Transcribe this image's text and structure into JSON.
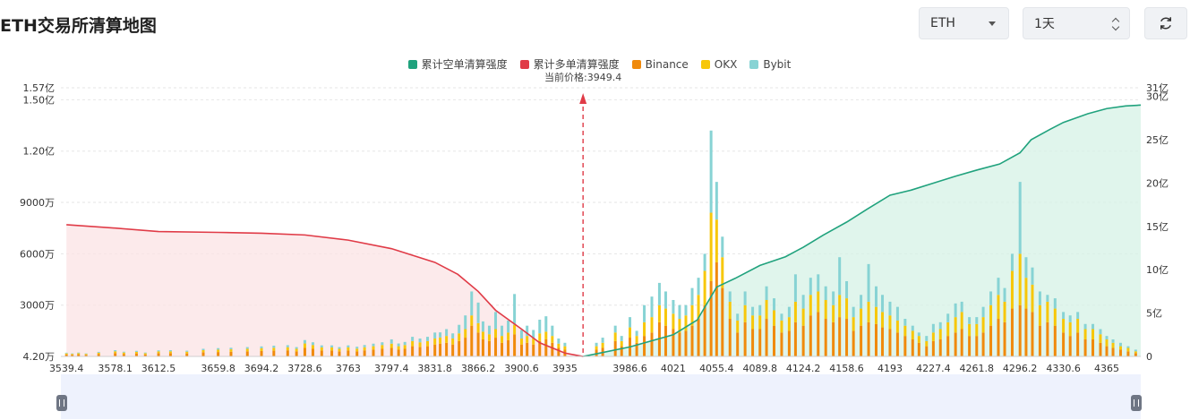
{
  "header": {
    "title": "ETH交易所清算地图",
    "coin_select": "ETH",
    "period_select": "1天"
  },
  "chart_data": {
    "type": "bar",
    "legend": [
      {
        "name": "累计空单清算强度",
        "color": "#20a27d"
      },
      {
        "name": "累计多单清算强度",
        "color": "#e03b47"
      },
      {
        "name": "Binance",
        "color": "#f08a0c"
      },
      {
        "name": "OKX",
        "color": "#f7c70a"
      },
      {
        "name": "Bybit",
        "color": "#87d3d4"
      }
    ],
    "current_price_label": "当前价格:3949.4",
    "current_price": 3949.4,
    "x_tick_labels": [
      "3539.4",
      "3578.1",
      "3612.5",
      "3659.8",
      "3694.2",
      "3728.6",
      "3763",
      "3797.4",
      "3831.8",
      "3866.2",
      "3900.6",
      "3935",
      "3986.6",
      "4021",
      "4055.4",
      "4089.8",
      "4124.2",
      "4158.6",
      "4193",
      "4227.4",
      "4261.8",
      "4296.2",
      "4330.6",
      "4365"
    ],
    "x_range": [
      3535,
      4392
    ],
    "left_axis_ticks": [
      {
        "label": "4.20万",
        "value": 42000
      },
      {
        "label": "3000万",
        "value": 30000000
      },
      {
        "label": "6000万",
        "value": 60000000
      },
      {
        "label": "9000万",
        "value": 90000000
      },
      {
        "label": "1.20亿",
        "value": 120000000
      },
      {
        "label": "1.50亿",
        "value": 150000000
      },
      {
        "label": "1.57亿",
        "value": 157000000
      }
    ],
    "right_axis_ticks": [
      {
        "label": "0",
        "value": 0
      },
      {
        "label": "5亿",
        "value": 500000000
      },
      {
        "label": "10亿",
        "value": 1000000000
      },
      {
        "label": "15亿",
        "value": 1500000000
      },
      {
        "label": "20亿",
        "value": 2000000000
      },
      {
        "label": "25亿",
        "value": 2500000000
      },
      {
        "label": "30亿",
        "value": 3000000000
      },
      {
        "label": "31亿",
        "value": 3100000000
      }
    ],
    "left_ylim": [
      42000,
      157000000
    ],
    "right_ylim": [
      0,
      3100000000
    ],
    "bars_long": {
      "x": [
        3539.4,
        3544,
        3549,
        3555,
        3565,
        3578.1,
        3585,
        3595,
        3602,
        3612.5,
        3622,
        3635,
        3648,
        3659.8,
        3670,
        3683,
        3694.2,
        3704,
        3715,
        3722,
        3728.6,
        3735,
        3742,
        3750,
        3756,
        3763,
        3770,
        3776,
        3783,
        3790,
        3797.4,
        3803,
        3808,
        3814,
        3820,
        3826,
        3831.8,
        3836,
        3841,
        3846,
        3851,
        3856,
        3861,
        3866.2,
        3870,
        3875,
        3880,
        3885,
        3890,
        3895,
        3900.6,
        3905,
        3910,
        3915,
        3920,
        3925,
        3930,
        3935
      ],
      "binance": [
        1.2,
        1.0,
        1.3,
        1.0,
        1.5,
        2.0,
        1.5,
        1.8,
        1.2,
        2.0,
        2.0,
        1.8,
        2.5,
        2.6,
        2.8,
        3.0,
        3.2,
        3.4,
        3.6,
        3.0,
        5.0,
        4.5,
        3.5,
        3.5,
        3.0,
        3.5,
        3.0,
        3.6,
        4.0,
        4.5,
        5.0,
        4.0,
        4.5,
        6.0,
        5.5,
        6.0,
        7.0,
        7.5,
        8.0,
        7.0,
        9.0,
        11.0,
        18.0,
        14.0,
        10.0,
        9.0,
        11.0,
        8.0,
        9.5,
        13.0,
        7.0,
        8.0,
        7.0,
        9.0,
        10.0,
        8.0,
        5.0,
        4.0
      ],
      "okx": [
        0.6,
        0.5,
        0.6,
        0.5,
        0.7,
        1.0,
        0.8,
        0.9,
        0.7,
        1.0,
        1.0,
        1.0,
        1.2,
        1.4,
        1.4,
        1.5,
        1.6,
        1.7,
        1.8,
        1.5,
        2.6,
        2.2,
        1.8,
        1.8,
        1.5,
        1.8,
        1.6,
        1.8,
        2.0,
        2.2,
        2.5,
        2.0,
        2.2,
        3.0,
        2.8,
        3.0,
        3.5,
        3.6,
        4.0,
        3.5,
        4.5,
        5.0,
        6.0,
        5.5,
        4.5,
        4.0,
        5.0,
        4.0,
        4.5,
        5.5,
        3.5,
        4.0,
        3.5,
        4.5,
        4.5,
        4.0,
        2.5,
        2.0
      ],
      "bybit": [
        0.4,
        0.3,
        0.4,
        0.3,
        0.5,
        0.7,
        0.5,
        0.6,
        0.4,
        0.6,
        0.7,
        0.6,
        0.8,
        0.9,
        0.9,
        1.0,
        1.1,
        1.2,
        1.2,
        1.0,
        2.0,
        1.6,
        1.2,
        1.2,
        1.0,
        1.2,
        1.1,
        1.3,
        1.5,
        1.6,
        2.5,
        1.6,
        1.8,
        2.5,
        2.2,
        2.5,
        3.5,
        3.0,
        4.0,
        3.0,
        5.0,
        8.0,
        14.0,
        12.0,
        6.0,
        5.0,
        10.0,
        6.0,
        7.0,
        18.0,
        5.0,
        6.0,
        5.0,
        8.0,
        9.0,
        6.0,
        3.0,
        2.0
      ]
    },
    "bars_short": {
      "x": [
        3960,
        3965,
        3975,
        3980,
        3986.6,
        3992,
        3998,
        4004,
        4010,
        4015,
        4021,
        4026,
        4031,
        4036,
        4041,
        4046,
        4051,
        4055.4,
        4060,
        4066,
        4072,
        4078,
        4084,
        4089.8,
        4095,
        4101,
        4107,
        4113,
        4118,
        4124.2,
        4130,
        4136,
        4142,
        4148,
        4153,
        4158.6,
        4164,
        4170,
        4176,
        4182,
        4187,
        4193,
        4199,
        4205,
        4211,
        4216,
        4222,
        4227.4,
        4233,
        4239,
        4245,
        4250,
        4256,
        4261.8,
        4267,
        4273,
        4279,
        4284,
        4290,
        4296.2,
        4301,
        4306,
        4312,
        4318,
        4324,
        4330.6,
        4336,
        4342,
        4348,
        4354,
        4360,
        4365,
        4370,
        4376,
        4382,
        4388
      ],
      "binance": [
        4,
        5,
        9,
        6,
        11,
        8,
        12,
        14,
        20,
        18,
        16,
        14,
        15,
        18,
        22,
        30,
        44,
        55,
        40,
        22,
        14,
        20,
        16,
        16,
        22,
        18,
        14,
        15,
        20,
        18,
        24,
        26,
        22,
        20,
        23,
        22,
        15,
        18,
        20,
        19,
        17,
        16,
        14,
        12,
        10,
        8,
        6,
        9,
        10,
        12,
        14,
        16,
        12,
        12,
        14,
        18,
        22,
        20,
        28,
        30,
        28,
        26,
        18,
        20,
        18,
        14,
        12,
        14,
        10,
        10,
        8,
        6,
        5,
        4,
        3,
        2
      ],
      "okx": [
        2,
        3,
        5,
        3,
        6,
        4,
        8,
        9,
        10,
        10,
        9,
        8,
        9,
        12,
        14,
        20,
        40,
        25,
        18,
        10,
        7,
        10,
        8,
        8,
        11,
        9,
        7,
        8,
        12,
        10,
        12,
        12,
        11,
        10,
        13,
        12,
        8,
        10,
        12,
        10,
        9,
        8,
        7,
        6,
        5,
        4,
        3,
        5,
        6,
        8,
        9,
        10,
        7,
        7,
        9,
        12,
        14,
        12,
        22,
        30,
        18,
        16,
        12,
        12,
        10,
        8,
        8,
        8,
        6,
        6,
        5,
        4,
        3,
        2,
        2,
        1
      ],
      "bybit": [
        2,
        3,
        4,
        3,
        6,
        3,
        10,
        12,
        13,
        10,
        8,
        8,
        6,
        10,
        10,
        10,
        48,
        22,
        12,
        6,
        4,
        8,
        5,
        6,
        8,
        7,
        4,
        6,
        16,
        8,
        10,
        10,
        8,
        8,
        22,
        10,
        6,
        8,
        22,
        12,
        10,
        8,
        8,
        4,
        3,
        2,
        3,
        5,
        4,
        5,
        8,
        6,
        4,
        4,
        6,
        8,
        10,
        8,
        10,
        42,
        12,
        10,
        8,
        4,
        6,
        4,
        4,
        4,
        3,
        3,
        3,
        2,
        2,
        2,
        1,
        1
      ]
    },
    "bars_unit": "百万",
    "long_cumulative": {
      "x": [
        3539.4,
        3578.1,
        3612.5,
        3659.8,
        3694.2,
        3728.6,
        3763,
        3797.4,
        3831.8,
        3850,
        3866.2,
        3880,
        3900.6,
        3915,
        3935,
        3949.4
      ],
      "values": [
        77,
        75,
        73,
        72.5,
        72,
        71,
        68,
        63,
        55,
        48,
        38,
        27,
        16,
        8,
        2,
        0
      ],
      "unit": "百万"
    },
    "short_cumulative": {
      "x": [
        3949.4,
        3960,
        3986.6,
        4021,
        4040,
        4055.4,
        4070,
        4089.8,
        4110,
        4124.2,
        4140,
        4158.6,
        4175,
        4193,
        4210,
        4227.4,
        4245,
        4261.8,
        4280,
        4296.2,
        4305,
        4320,
        4330.6,
        4350,
        4365,
        4380,
        4392
      ],
      "values": [
        0,
        0.3,
        1.1,
        2.5,
        4.2,
        8.0,
        9.0,
        10.5,
        11.5,
        12.6,
        14.0,
        15.5,
        17.0,
        18.6,
        19.2,
        20.0,
        20.8,
        21.5,
        22.2,
        23.5,
        25.0,
        26.2,
        27.0,
        28.0,
        28.6,
        28.9,
        29.0
      ],
      "unit": "亿"
    }
  }
}
